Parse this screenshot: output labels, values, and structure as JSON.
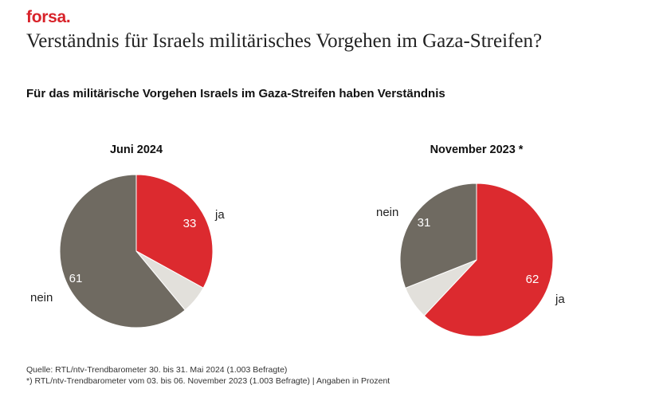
{
  "brand": "forsa.",
  "title": "Verständnis für Israels militärisches Vorgehen im Gaza-Streifen?",
  "subtitle": "Für das militärische Vorgehen Israels im Gaza-Streifen haben Verständnis",
  "colors": {
    "ja": "#dc2a2f",
    "nein": "#6f6a61",
    "rest": "#e2e0db",
    "brand": "#d8232a"
  },
  "chart_data": [
    {
      "type": "pie",
      "title": "Juni 2024",
      "slices": [
        {
          "label": "ja",
          "value": 33,
          "color": "#dc2a2f"
        },
        {
          "label": "",
          "value": 6,
          "color": "#e2e0db"
        },
        {
          "label": "nein",
          "value": 61,
          "color": "#6f6a61"
        }
      ]
    },
    {
      "type": "pie",
      "title": "November 2023 *",
      "slices": [
        {
          "label": "ja",
          "value": 62,
          "color": "#dc2a2f"
        },
        {
          "label": "",
          "value": 7,
          "color": "#e2e0db"
        },
        {
          "label": "nein",
          "value": 31,
          "color": "#6f6a61"
        }
      ]
    }
  ],
  "footnotes": [
    "Quelle: RTL/ntv-Trendbarometer 30. bis 31. Mai 2024 (1.003 Befragte)",
    "*) RTL/ntv-Trendbarometer vom 03. bis 06. November 2023 (1.003 Befragte) | Angaben in Prozent"
  ]
}
